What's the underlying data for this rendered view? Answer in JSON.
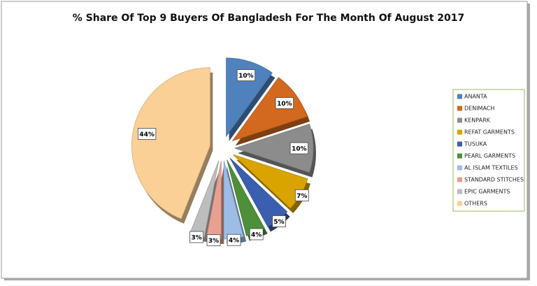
{
  "chart_data": {
    "type": "pie",
    "title": "% Share Of Top 9 Buyers Of Bangladesh For The Month Of August 2017",
    "categories": [
      "ANANTA",
      "DENIMACH",
      "KENPARK",
      "REFAT GARMENTS",
      "TUSUKA",
      "PEARL GARMENTS",
      "AL ISLAM TEXTILES",
      "STANDARD STITCHES",
      "EPIC GARMENTS",
      "OTHERS"
    ],
    "values": [
      10,
      10,
      10,
      7,
      5,
      4,
      4,
      3,
      3,
      44
    ],
    "value_labels": [
      "10%",
      "10%",
      "10%",
      "7%",
      "5%",
      "4%",
      "4%",
      "3%",
      "3%",
      "44%"
    ],
    "colors": [
      "#4f81bd",
      "#d2691e",
      "#8c8c8c",
      "#d9a400",
      "#3a5fae",
      "#4e8f3a",
      "#9dbde6",
      "#e8a090",
      "#bdbdbd",
      "#fad097"
    ],
    "legend": "right"
  }
}
